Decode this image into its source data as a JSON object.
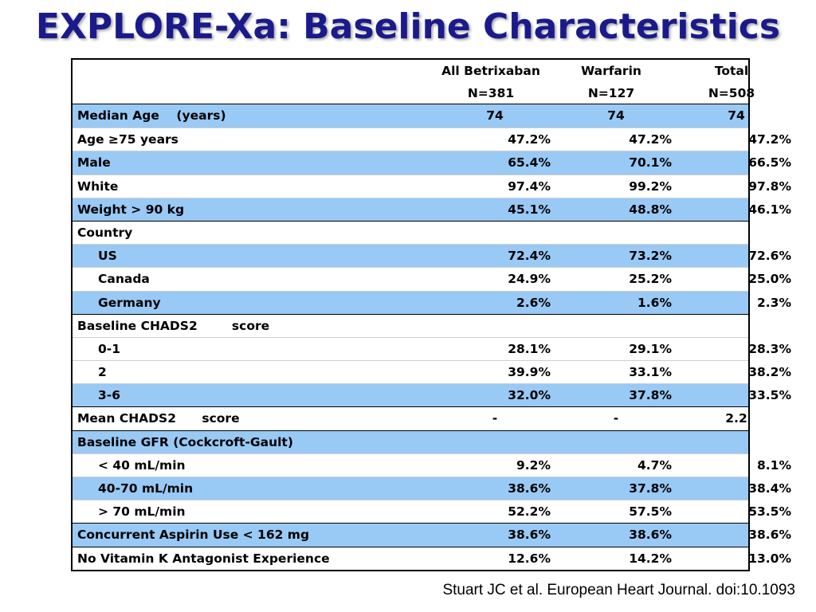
{
  "title": "EXPLORE-Xa: Baseline Characteristics",
  "columns": [
    {
      "name": "All Betrixaban",
      "n": "N=381"
    },
    {
      "name": "Warfarin",
      "n": "N=127"
    },
    {
      "name": "Total",
      "n": "N=508"
    }
  ],
  "rows": [
    {
      "label": "Median Age    (years)",
      "values": [
        "74",
        "74",
        "74"
      ]
    },
    {
      "label": "Age ≥75 years",
      "values": [
        "47.2%",
        "47.2%",
        "47.2%"
      ]
    },
    {
      "label": "Male",
      "values": [
        "65.4%",
        "70.1%",
        "66.5%"
      ]
    },
    {
      "label": "White",
      "values": [
        "97.4%",
        "99.2%",
        "97.8%"
      ]
    },
    {
      "label": "Weight > 90 kg",
      "values": [
        "45.1%",
        "48.8%",
        "46.1%"
      ]
    },
    {
      "label": "Country",
      "values": [
        "",
        "",
        ""
      ]
    },
    {
      "label": "US",
      "values": [
        "72.4%",
        "73.2%",
        "72.6%"
      ]
    },
    {
      "label": "Canada",
      "values": [
        "24.9%",
        "25.2%",
        "25.0%"
      ]
    },
    {
      "label": "Germany",
      "values": [
        "2.6%",
        "1.6%",
        "2.3%"
      ]
    },
    {
      "label": "Baseline CHADS2        score",
      "values": [
        "",
        "",
        ""
      ]
    },
    {
      "label": "0-1",
      "values": [
        "28.1%",
        "29.1%",
        "28.3%"
      ]
    },
    {
      "label": "2",
      "values": [
        "39.9%",
        "33.1%",
        "38.2%"
      ]
    },
    {
      "label": "3-6",
      "values": [
        "32.0%",
        "37.8%",
        "33.5%"
      ]
    },
    {
      "label": "Mean CHADS2      score",
      "values": [
        "-",
        "-",
        "2.2"
      ]
    },
    {
      "label": "Baseline GFR (Cockcroft-Gault)",
      "values": [
        "",
        "",
        ""
      ]
    },
    {
      "label": "< 40 mL/min",
      "values": [
        "9.2%",
        "4.7%",
        "8.1%"
      ]
    },
    {
      "label": "40-70 mL/min",
      "values": [
        "38.6%",
        "37.8%",
        "38.4%"
      ]
    },
    {
      "label": "> 70 mL/min",
      "values": [
        "52.2%",
        "57.5%",
        "53.5%"
      ]
    },
    {
      "label": "Concurrent Aspirin Use < 162 mg",
      "values": [
        "38.6%",
        "38.6%",
        "38.6%"
      ]
    },
    {
      "label": "No Vitamin K Antagonist Experience",
      "values": [
        "12.6%",
        "14.2%",
        "13.0%"
      ]
    }
  ],
  "citation": "Stuart JC et al. European Heart Journal. doi:10.1093",
  "colors": {
    "title": "#1a1a8c",
    "row_highlight": "#99c9f5",
    "row_plain": "#ffffff"
  }
}
